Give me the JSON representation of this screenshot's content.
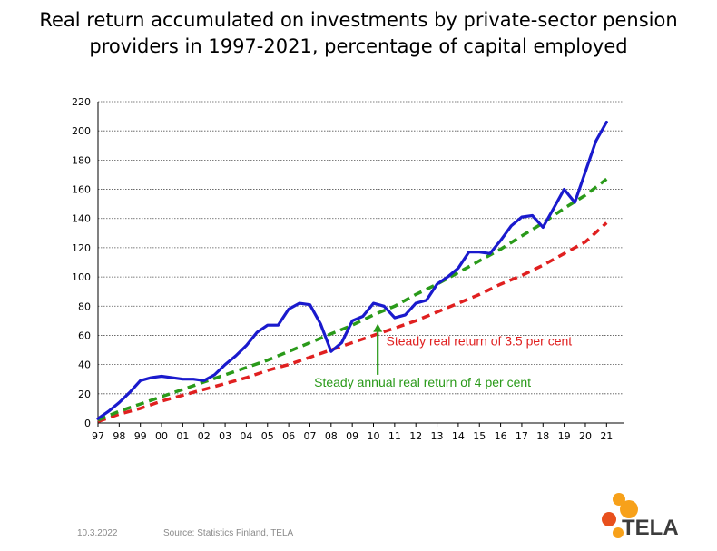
{
  "title_line1": "Real return accumulated on investments by private-sector pension",
  "title_line2": "providers in 1997-2021, percentage of capital employed",
  "footer": {
    "date": "10.3.2022",
    "source": "Source: Statistics Finland, TELA"
  },
  "logo": {
    "text": "TELA",
    "colors": [
      "#f7a11a",
      "#e8501d"
    ]
  },
  "chart_data": {
    "type": "line",
    "title": "",
    "xlabel": "",
    "ylabel": "",
    "ylim": [
      0,
      220
    ],
    "y_ticks": [
      0,
      20,
      40,
      60,
      80,
      100,
      120,
      140,
      160,
      180,
      200,
      220
    ],
    "x_tick_labels": [
      "97",
      "98",
      "99",
      "00",
      "01",
      "02",
      "03",
      "04",
      "05",
      "06",
      "07",
      "08",
      "09",
      "10",
      "11",
      "12",
      "13",
      "14",
      "15",
      "16",
      "17",
      "18",
      "19",
      "20",
      "21"
    ],
    "grid": true,
    "series": [
      {
        "name": "",
        "color": "#1a1acd",
        "style": "solid",
        "points": [
          [
            1997.0,
            3
          ],
          [
            1997.5,
            8
          ],
          [
            1998.0,
            14
          ],
          [
            1998.5,
            21
          ],
          [
            1999.0,
            29
          ],
          [
            1999.5,
            31
          ],
          [
            2000.0,
            32
          ],
          [
            2000.5,
            31
          ],
          [
            2001.0,
            30
          ],
          [
            2001.5,
            30
          ],
          [
            2002.0,
            29
          ],
          [
            2002.5,
            33
          ],
          [
            2003.0,
            40
          ],
          [
            2003.5,
            46
          ],
          [
            2004.0,
            53
          ],
          [
            2004.5,
            62
          ],
          [
            2005.0,
            67
          ],
          [
            2005.5,
            67
          ],
          [
            2006.0,
            78
          ],
          [
            2006.5,
            82
          ],
          [
            2007.0,
            81
          ],
          [
            2007.5,
            68
          ],
          [
            2008.0,
            49
          ],
          [
            2008.5,
            55
          ],
          [
            2009.0,
            70
          ],
          [
            2009.5,
            73
          ],
          [
            2010.0,
            82
          ],
          [
            2010.5,
            80
          ],
          [
            2011.0,
            72
          ],
          [
            2011.5,
            74
          ],
          [
            2012.0,
            82
          ],
          [
            2012.5,
            84
          ],
          [
            2013.0,
            95
          ],
          [
            2013.5,
            100
          ],
          [
            2014.0,
            106
          ],
          [
            2014.5,
            117
          ],
          [
            2015.0,
            117
          ],
          [
            2015.5,
            116
          ],
          [
            2016.0,
            125
          ],
          [
            2016.5,
            135
          ],
          [
            2017.0,
            141
          ],
          [
            2017.5,
            142
          ],
          [
            2018.0,
            134
          ],
          [
            2018.5,
            147
          ],
          [
            2019.0,
            160
          ],
          [
            2019.5,
            151
          ],
          [
            2020.0,
            172
          ],
          [
            2020.5,
            193
          ],
          [
            2021.0,
            206
          ]
        ]
      },
      {
        "name": "Steady annual real return of 4 per cent",
        "color": "#2a9a1a",
        "style": "dashed",
        "points": [
          [
            1997.0,
            2
          ],
          [
            1998.0,
            8
          ],
          [
            1999.0,
            13
          ],
          [
            2000.0,
            18
          ],
          [
            2001.0,
            23
          ],
          [
            2002.0,
            28
          ],
          [
            2003.0,
            33
          ],
          [
            2004.0,
            38
          ],
          [
            2005.0,
            43
          ],
          [
            2006.0,
            49
          ],
          [
            2007.0,
            55
          ],
          [
            2008.0,
            61
          ],
          [
            2009.0,
            67
          ],
          [
            2010.0,
            74
          ],
          [
            2011.0,
            80
          ],
          [
            2012.0,
            88
          ],
          [
            2013.0,
            95
          ],
          [
            2014.0,
            103
          ],
          [
            2015.0,
            111
          ],
          [
            2016.0,
            119
          ],
          [
            2017.0,
            128
          ],
          [
            2018.0,
            137
          ],
          [
            2019.0,
            147
          ],
          [
            2020.0,
            156
          ],
          [
            2021.0,
            167
          ]
        ]
      },
      {
        "name": "Steady real return of 3.5 per cent",
        "color": "#e02020",
        "style": "dashed",
        "points": [
          [
            1997.0,
            1
          ],
          [
            1998.0,
            6
          ],
          [
            1999.0,
            10
          ],
          [
            2000.0,
            15
          ],
          [
            2001.0,
            19
          ],
          [
            2002.0,
            23
          ],
          [
            2003.0,
            27
          ],
          [
            2004.0,
            31
          ],
          [
            2005.0,
            36
          ],
          [
            2006.0,
            40
          ],
          [
            2007.0,
            45
          ],
          [
            2008.0,
            50
          ],
          [
            2009.0,
            55
          ],
          [
            2010.0,
            60
          ],
          [
            2011.0,
            65
          ],
          [
            2012.0,
            70
          ],
          [
            2013.0,
            76
          ],
          [
            2014.0,
            82
          ],
          [
            2015.0,
            88
          ],
          [
            2016.0,
            95
          ],
          [
            2017.0,
            101
          ],
          [
            2018.0,
            108
          ],
          [
            2019.0,
            116
          ],
          [
            2020.0,
            124
          ],
          [
            2021.0,
            137
          ]
        ]
      }
    ],
    "annotations": [
      {
        "text": "Steady real return of 3.5 per cent",
        "color": "#e02020",
        "anchor": [
          2010.6,
          53
        ]
      },
      {
        "text": "Steady annual real return of 4 per cent",
        "color": "#2a9a1a",
        "anchor": [
          2007.2,
          25
        ],
        "arrow": {
          "from": [
            2010.2,
            33
          ],
          "to": [
            2010.2,
            68
          ]
        }
      }
    ]
  }
}
